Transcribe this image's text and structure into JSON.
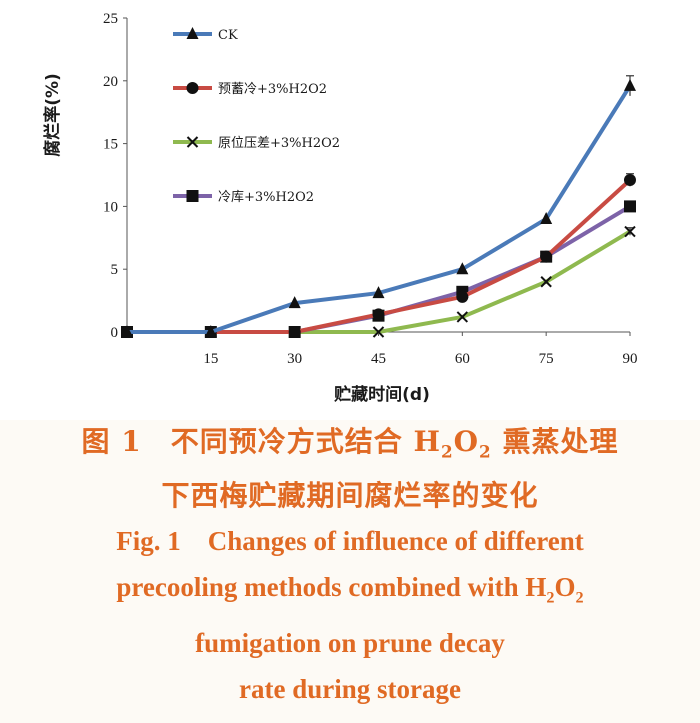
{
  "chart_data": {
    "type": "line",
    "title": "",
    "xlabel": "贮藏时间(d)",
    "ylabel": "腐烂率(%)",
    "x": [
      0,
      15,
      30,
      45,
      60,
      75,
      90
    ],
    "x_tick_labels": [
      "15",
      "30",
      "45",
      "60",
      "75",
      "90"
    ],
    "y_ticks": [
      "0",
      "5",
      "10",
      "15",
      "20",
      "25"
    ],
    "xlim": [
      0,
      90
    ],
    "ylim": [
      0,
      25
    ],
    "grid": false,
    "legend_position": "top-left",
    "series": [
      {
        "name": "CK",
        "marker": "triangle",
        "color": "#4a7ab8",
        "values": [
          0,
          0,
          2.3,
          3.1,
          5.0,
          9.0,
          19.6
        ],
        "error_last": 0.8
      },
      {
        "name": "预蓄冷+3%H2O2",
        "marker": "circle",
        "color": "#c84b43",
        "values": [
          0,
          0,
          0,
          1.4,
          2.8,
          6.0,
          12.1
        ],
        "error_last": 0.5
      },
      {
        "name": "原位压差+3%H2O2",
        "marker": "cross",
        "color": "#8fb94f",
        "values": [
          0,
          0,
          0,
          0,
          1.2,
          4.0,
          8.0
        ],
        "error_last": 0.3
      },
      {
        "name": "冷库+3%H2O2",
        "marker": "square",
        "color": "#7d63a8",
        "values": [
          0,
          0,
          0,
          1.3,
          3.2,
          6.0,
          10.0
        ],
        "error_last": 0.3
      }
    ]
  },
  "caption": {
    "zh_line1_prefix": "图 1　不同预冷方式结合 H",
    "zh_line1_sub1": "2",
    "zh_line1_mid": "O",
    "zh_line1_sub2": "2",
    "zh_line1_suffix": " 熏蒸处理",
    "zh_line2": "下西梅贮藏期间腐烂率的变化",
    "en_line1": "Fig. 1　Changes of influence of different",
    "en_line2_prefix": "precooling methods combined with H",
    "en_line2_sub1": "2",
    "en_line2_mid": "O",
    "en_line2_sub2": "2",
    "en_line3": "fumigation on prune decay",
    "en_line4": "rate during storage"
  }
}
